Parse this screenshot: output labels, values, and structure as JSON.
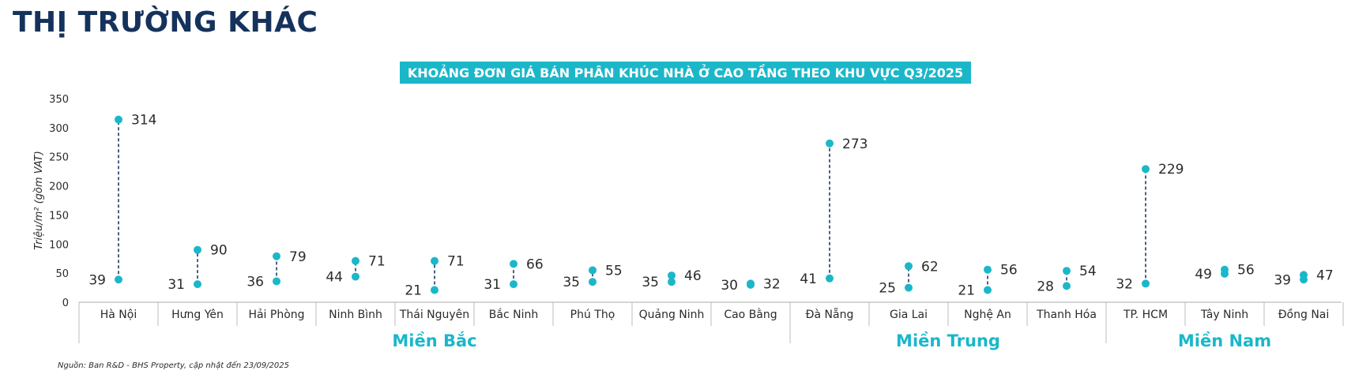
{
  "header": {
    "title": "THỊ TRƯỜNG KHÁC"
  },
  "chart_data": {
    "type": "range-dot",
    "title": "KHOẢNG ĐƠN GIÁ BÁN PHÂN KHÚC NHÀ Ở CAO TẦNG THEO KHU VỰC Q3/2025",
    "xlabel": "",
    "ylabel": "Triệu/m² (gồm VAT)",
    "ylim": [
      0,
      350
    ],
    "yticks": [
      0,
      50,
      100,
      150,
      200,
      250,
      300,
      350
    ],
    "grid": false,
    "categories": [
      "Hà Nội",
      "Hưng Yên",
      "Hải Phòng",
      "Ninh Bình",
      "Thái Nguyên",
      "Bắc Ninh",
      "Phú Thọ",
      "Quảng Ninh",
      "Cao Bằng",
      "Đà Nẵng",
      "Gia Lai",
      "Nghệ An",
      "Thanh Hóa",
      "TP. HCM",
      "Tây Ninh",
      "Đồng Nai"
    ],
    "series": [
      {
        "values": [
          39,
          31,
          36,
          44,
          21,
          31,
          35,
          35,
          30,
          41,
          25,
          21,
          28,
          32,
          49,
          39
        ]
      },
      {
        "values": [
          314,
          90,
          79,
          71,
          71,
          66,
          55,
          46,
          32,
          273,
          62,
          56,
          54,
          229,
          56,
          47
        ]
      }
    ],
    "groups": [
      {
        "label": "Miền Bắc",
        "start": 0,
        "end": 8
      },
      {
        "label": "Miền Trung",
        "start": 9,
        "end": 12
      },
      {
        "label": "Miền Nam",
        "start": 13,
        "end": 15
      }
    ],
    "colors": {
      "marker": "#1bb7c9",
      "line": "#1f3a64",
      "group": "#1bb7c9",
      "axis": "#bcbcbc"
    }
  },
  "footer": {
    "source": "Nguồn: Ban R&D - BHS Property, cập nhật đến 23/09/2025"
  }
}
